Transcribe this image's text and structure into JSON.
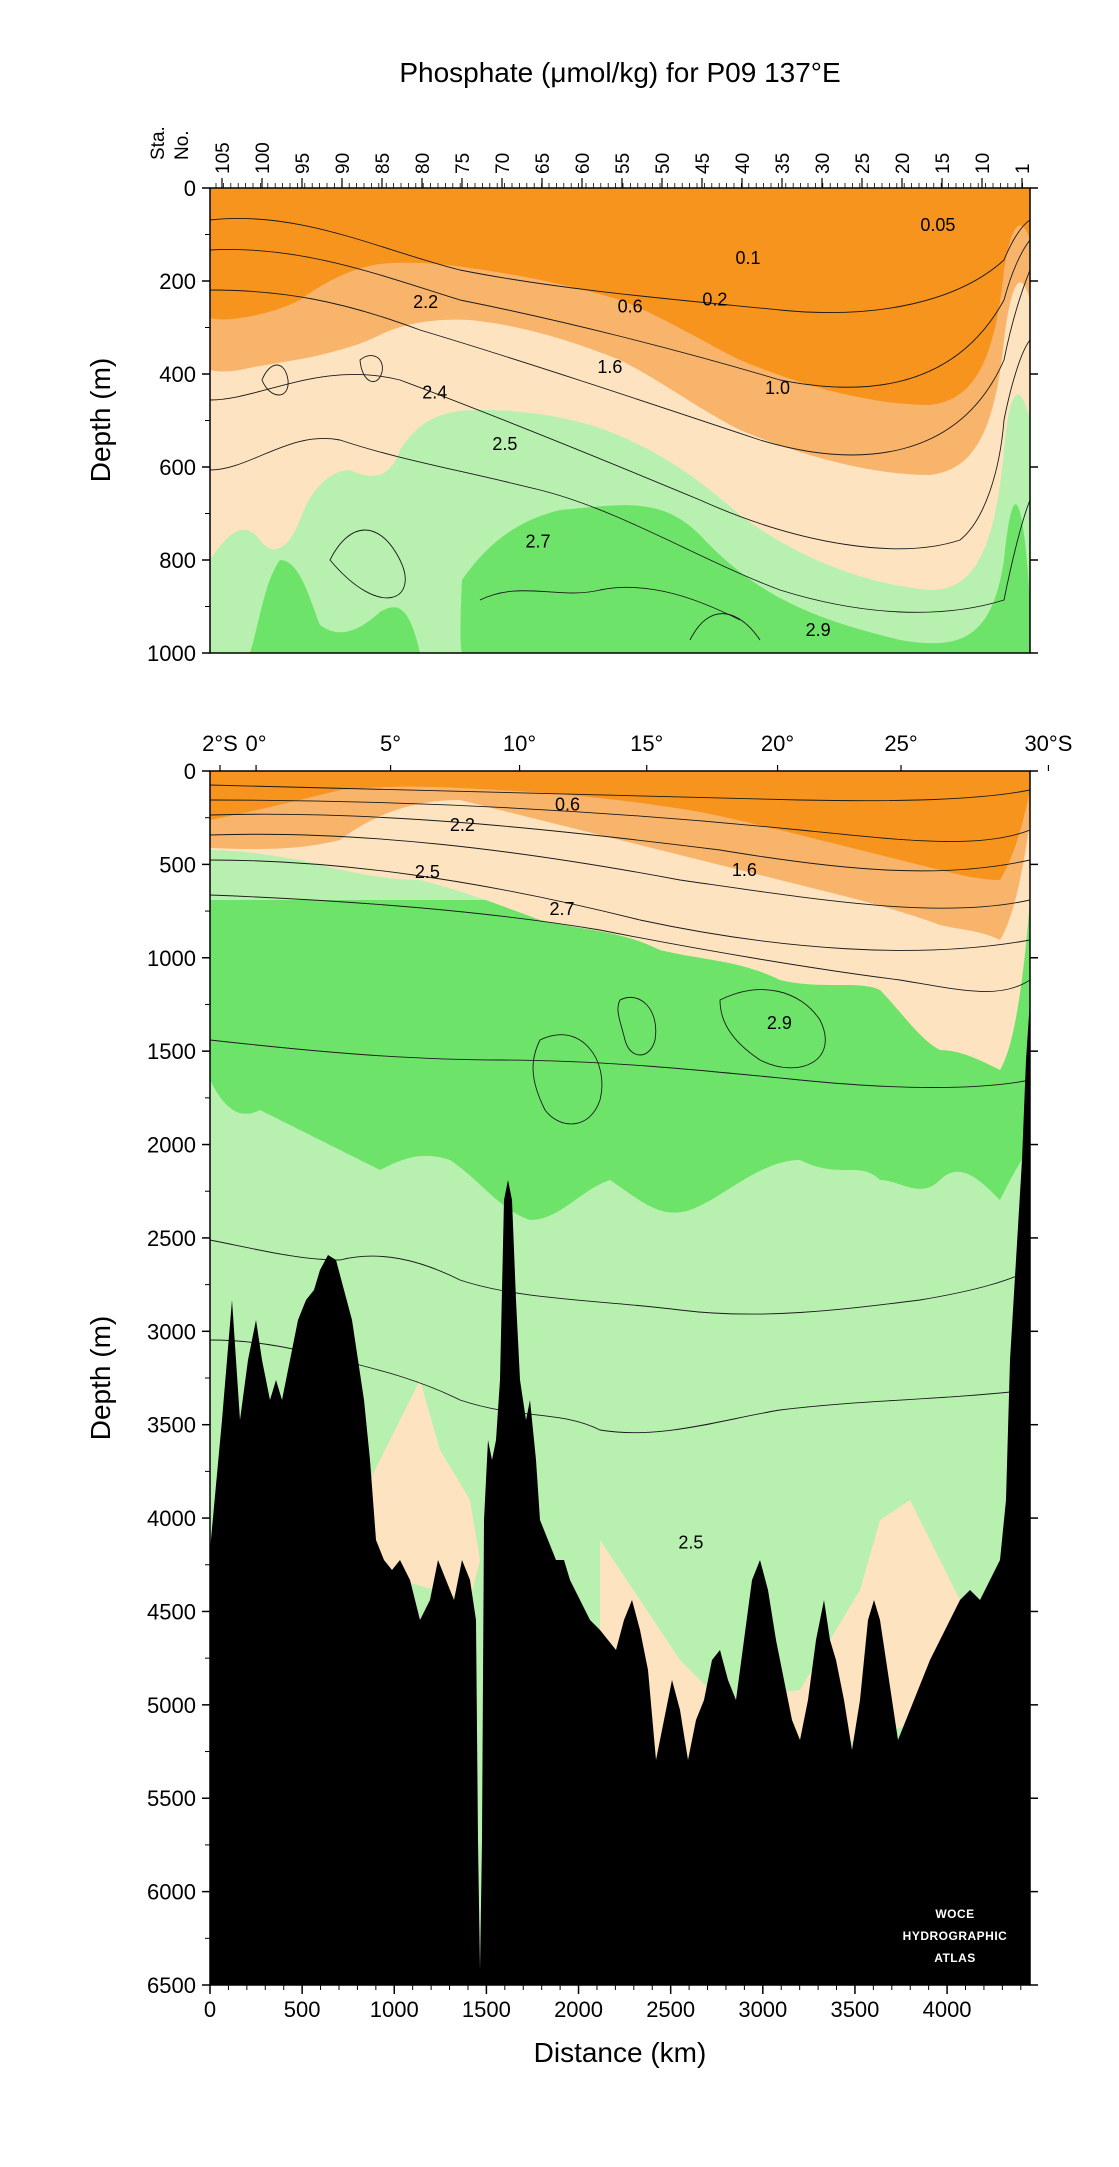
{
  "chart_data": {
    "type": "heatmap",
    "title": "Phosphate (μmol/kg) for P09 137°E",
    "colors": {
      "orange_dark": "#f7941d",
      "orange_mid": "#f9b46b",
      "peach": "#fde3bf",
      "green_light": "#b8f0b0",
      "green_mid": "#6ee36a",
      "bottom": "#000000"
    },
    "panels": [
      {
        "id": "upper",
        "ylabel": "Depth (m)",
        "ylim": [
          1000,
          0
        ],
        "yticks": [
          "0",
          "200",
          "400",
          "600",
          "800",
          "1000"
        ],
        "station_axis_label": [
          "Sta.",
          "No."
        ],
        "stations": [
          "105",
          "100",
          "95",
          "90",
          "85",
          "80",
          "75",
          "70",
          "65",
          "60",
          "55",
          "50",
          "45",
          "40",
          "35",
          "30",
          "25",
          "20",
          "15",
          "10",
          "1"
        ],
        "contour_labels": [
          {
            "text": "0.05",
            "distance": 3950,
            "depth": 80
          },
          {
            "text": "0.1",
            "distance": 2920,
            "depth": 150
          },
          {
            "text": "0.2",
            "distance": 2740,
            "depth": 240
          },
          {
            "text": "0.6",
            "distance": 2280,
            "depth": 255
          },
          {
            "text": "2.2",
            "distance": 1170,
            "depth": 245
          },
          {
            "text": "1.6",
            "distance": 2170,
            "depth": 385
          },
          {
            "text": "1.0",
            "distance": 3080,
            "depth": 430
          },
          {
            "text": "2.4",
            "distance": 1220,
            "depth": 440
          },
          {
            "text": "2.5",
            "distance": 1600,
            "depth": 550
          },
          {
            "text": "2.7",
            "distance": 1780,
            "depth": 760
          },
          {
            "text": "2.9",
            "distance": 3300,
            "depth": 950
          }
        ]
      },
      {
        "id": "lower",
        "ylabel": "Depth (m)",
        "xlabel": "Distance (km)",
        "ylim": [
          6500,
          0
        ],
        "xlim": [
          0,
          4450
        ],
        "yticks": [
          "0",
          "500",
          "1000",
          "1500",
          "2000",
          "2500",
          "3000",
          "3500",
          "4000",
          "4500",
          "5000",
          "5500",
          "6000",
          "6500"
        ],
        "xticks": [
          "0",
          "500",
          "1000",
          "1500",
          "2000",
          "2500",
          "3000",
          "3500",
          "4000"
        ],
        "latitude_ticks": [
          "2°S",
          "0°",
          "5°",
          "10°",
          "15°",
          "20°",
          "25°",
          "30°S"
        ],
        "contour_labels": [
          {
            "text": "0.6",
            "distance": 1940,
            "depth": 180
          },
          {
            "text": "2.2",
            "distance": 1370,
            "depth": 290
          },
          {
            "text": "2.5",
            "distance": 1180,
            "depth": 540
          },
          {
            "text": "1.6",
            "distance": 2900,
            "depth": 530
          },
          {
            "text": "2.7",
            "distance": 1910,
            "depth": 740
          },
          {
            "text": "2.9",
            "distance": 3090,
            "depth": 1350
          },
          {
            "text": "2.5",
            "distance": 2610,
            "depth": 4130
          }
        ],
        "watermark": [
          "WOCE",
          "HYDROGRAPHIC",
          "ATLAS"
        ]
      }
    ]
  }
}
